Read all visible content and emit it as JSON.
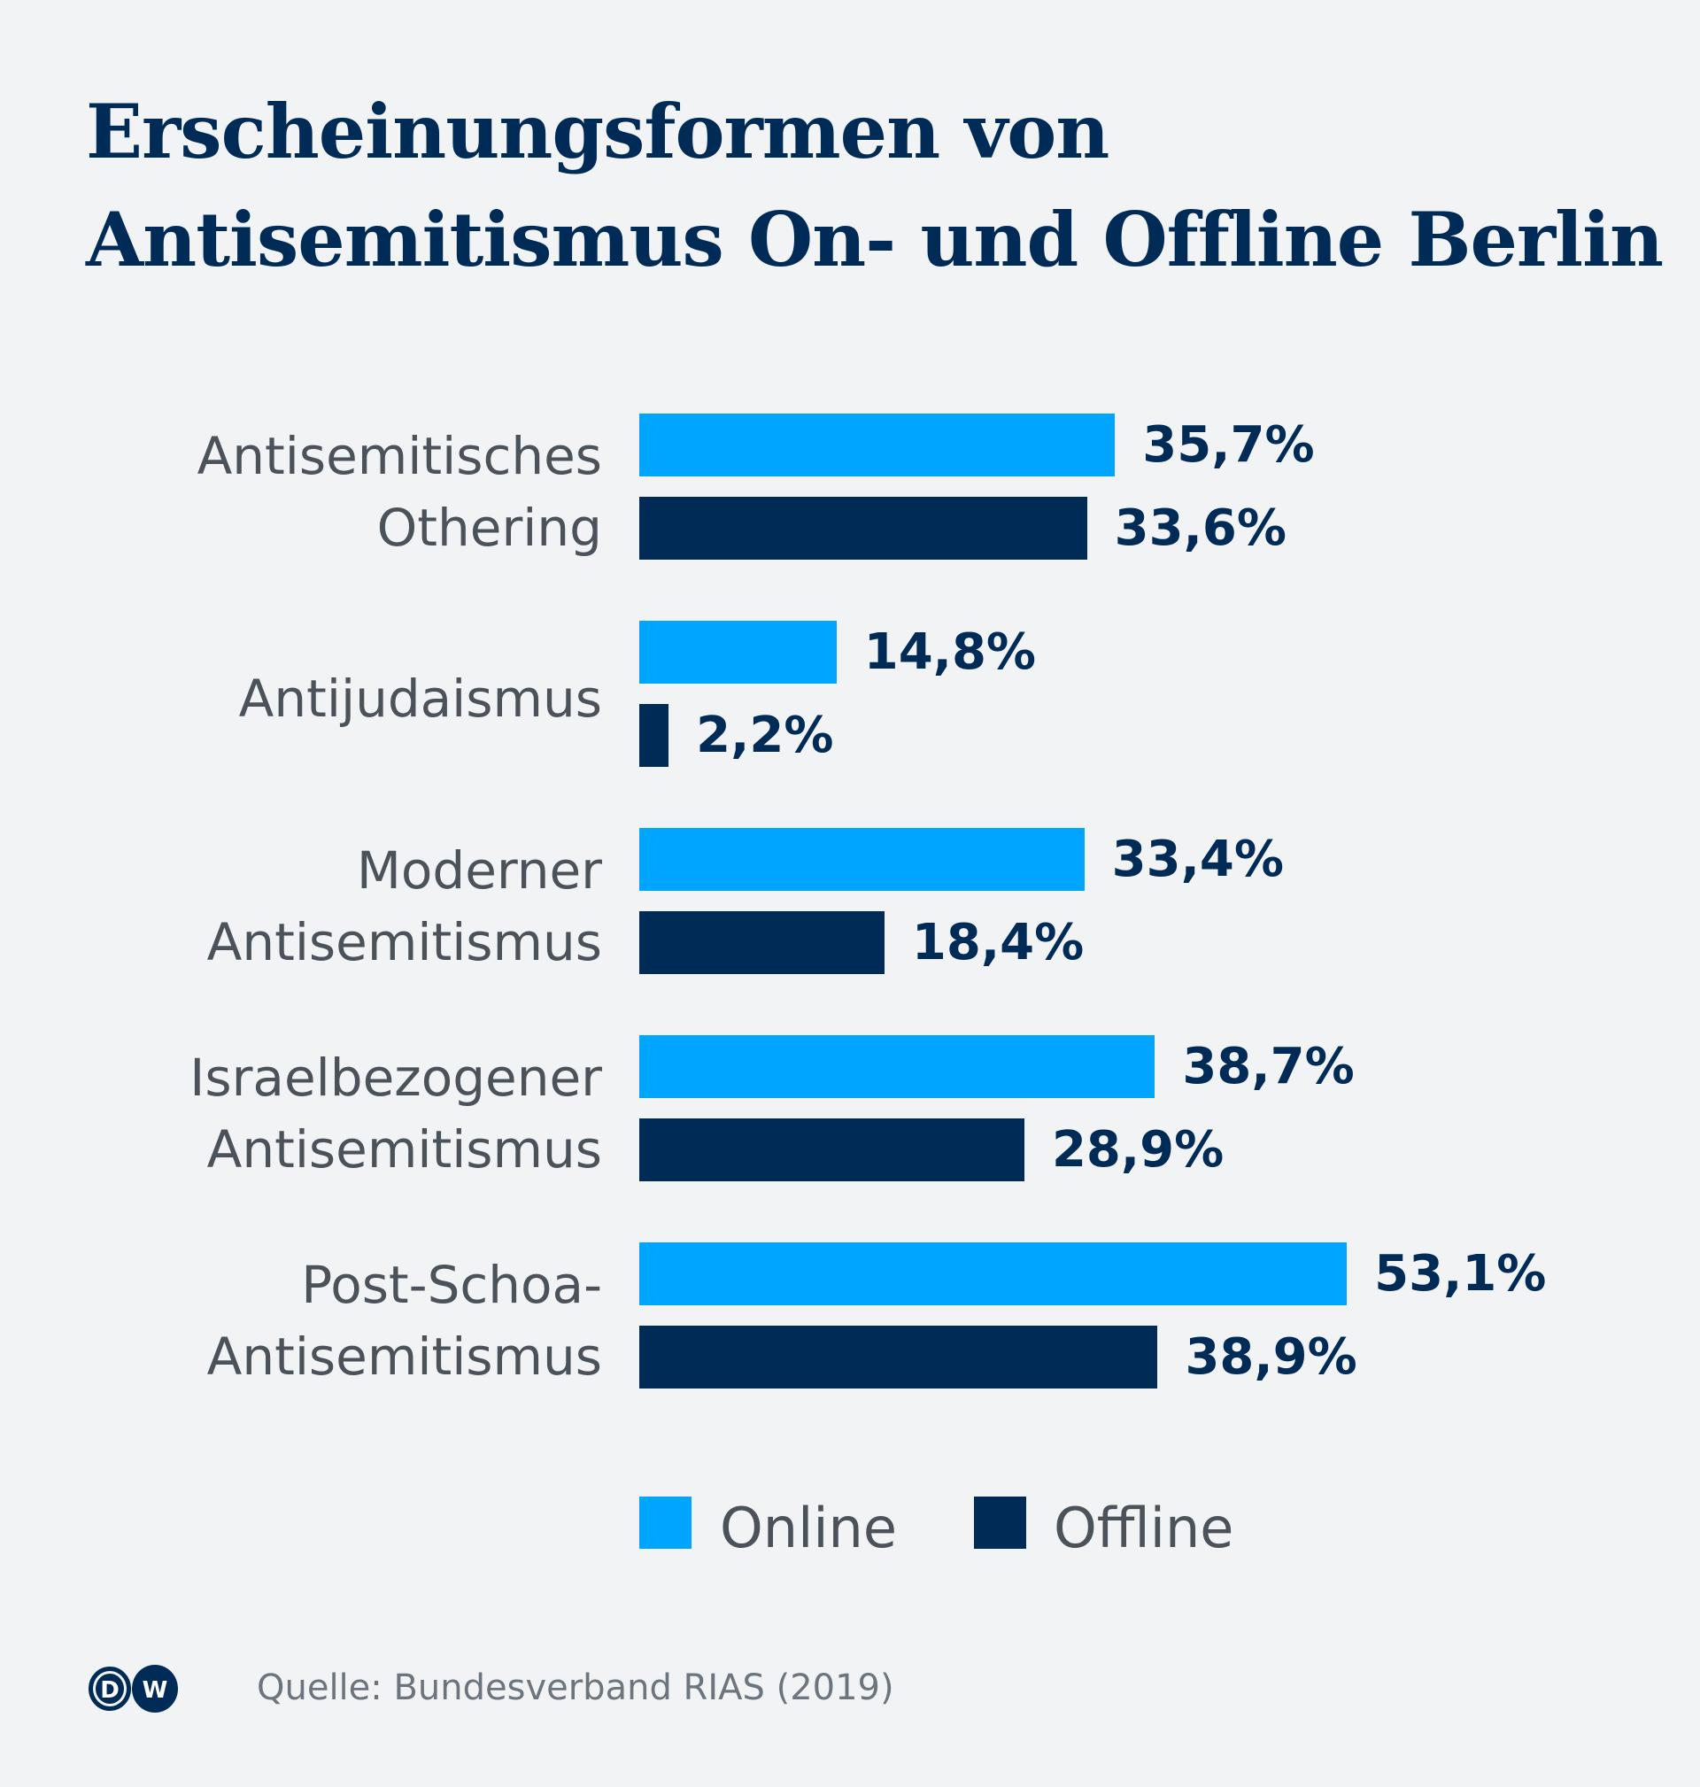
{
  "chart_data": {
    "type": "bar",
    "orientation": "horizontal",
    "title_lines": [
      "Erscheinungsformen von",
      "Antisemitismus On- und Offline Berlin"
    ],
    "categories": [
      [
        "Antisemitisches",
        "Othering"
      ],
      [
        "Antijudaismus"
      ],
      [
        "Moderner",
        "Antisemitismus"
      ],
      [
        "Israelbezogener",
        "Antisemitismus"
      ],
      [
        "Post-Schoa-",
        "Antisemitismus"
      ]
    ],
    "series": [
      {
        "name": "Online",
        "color": "#00a5ff",
        "values": [
          35.7,
          14.8,
          33.4,
          38.7,
          53.1
        ],
        "labels": [
          "35,7%",
          "14,8%",
          "33,4%",
          "38,7%",
          "53,1%"
        ]
      },
      {
        "name": "Offline",
        "color": "#002b57",
        "values": [
          33.6,
          2.2,
          18.4,
          28.9,
          38.9
        ],
        "labels": [
          "33,6%",
          "2,2%",
          "18,4%",
          "28,9%",
          "38,9%"
        ]
      }
    ],
    "xlim": [
      0,
      60
    ],
    "grid": false,
    "legend_position": "bottom"
  },
  "source": "Quelle: Bundesverband RIAS (2019)",
  "logo": "DW"
}
